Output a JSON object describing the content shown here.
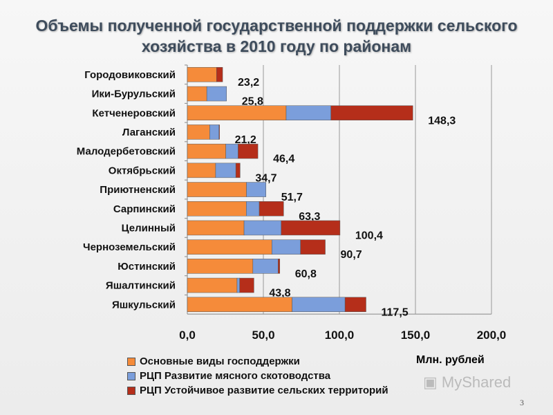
{
  "chart_data": {
    "type": "bar",
    "orientation": "horizontal",
    "stacked": true,
    "title": "Объемы полученной государственной поддержки сельского хозяйства в 2010 году по районам",
    "categories": [
      "Городовиковский",
      "Ики-Бурульский",
      "Кетченеровский",
      "Лаганский",
      "Малодербетовский",
      "Октябрьский",
      "Приютненский",
      "Сарпинский",
      "Целинный",
      "Черноземельский",
      "Юстинский",
      "Яшалтинский",
      "Яшкульский"
    ],
    "series": [
      {
        "name": "Основные виды господдержки",
        "color": "#f58b3a",
        "values": [
          19.2,
          12.8,
          65.0,
          14.7,
          25.3,
          18.6,
          38.9,
          38.8,
          37.3,
          55.6,
          43.1,
          32.7,
          68.9
        ]
      },
      {
        "name": "РЦП Развитие мясного скотоводства",
        "color": "#7b9edb",
        "values": [
          0,
          13.0,
          29.4,
          6.1,
          8.1,
          13.3,
          12.8,
          8.5,
          24.4,
          18.8,
          16.6,
          1.7,
          34.8
        ]
      },
      {
        "name": "РЦП Устойчивое развитие сельских территорий",
        "color": "#b52e1a",
        "values": [
          4.0,
          0,
          53.9,
          0.4,
          13.0,
          2.8,
          0,
          16.0,
          38.7,
          16.3,
          1.1,
          9.4,
          13.8
        ]
      }
    ],
    "totals": [
      "23,2",
      "25,8",
      "148,3",
      "21,2",
      "46,4",
      "34,7",
      "51,7",
      "63,3",
      "100,4",
      "90,7",
      "60,8",
      "43,8",
      "117,5"
    ],
    "xlim": [
      0,
      200
    ],
    "ticks": [
      "0,0",
      "50,0",
      "100,0",
      "150,0",
      "200,0"
    ],
    "xlabel": "Млн. рублей",
    "grid": true,
    "legend": "bottom-left"
  },
  "watermark": "MyShared",
  "page_number": "3"
}
